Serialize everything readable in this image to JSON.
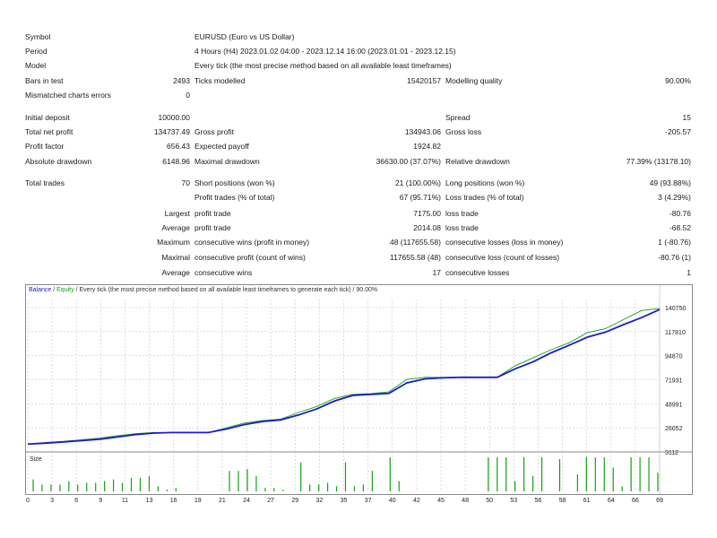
{
  "header_rows": [
    {
      "label": "Symbol",
      "text": "EURUSD (Euro vs US Dollar)"
    },
    {
      "label": "Period",
      "text": "4 Hours (H4) 2023.01.02 04:00 - 2023.12.14 16:00 (2023.01.01 - 2023.12.15)"
    },
    {
      "label": "Model",
      "text": "Every tick (the most precise method based on all available least timeframes)"
    }
  ],
  "bars_row": {
    "label": "Bars in test",
    "value": "2493",
    "l2": "Ticks modelled",
    "v2": "15420157",
    "l3": "Modelling quality",
    "v3": "90.00%"
  },
  "mismatch_row": {
    "label": "Mismatched charts errors",
    "value": "0"
  },
  "stats_rows": [
    {
      "l1": "Initial deposit",
      "v1": "10000.00",
      "l2": "",
      "v2": "",
      "l3": "Spread",
      "v3": "15"
    },
    {
      "l1": "Total net profit",
      "v1": "134737.49",
      "l2": "Gross profit",
      "v2": "134943.06",
      "l3": "Gross loss",
      "v3": "-205.57"
    },
    {
      "l1": "Profit factor",
      "v1": "656.43",
      "l2": "Expected payoff",
      "v2": "1924.82",
      "l3": "",
      "v3": ""
    },
    {
      "l1": "Absolute drawdown",
      "v1": "6148.96",
      "l2": "Maximal drawdown",
      "v2": "36630.00 (37.07%)",
      "l3": "Relative drawdown",
      "v3": "77.39% (13178.10)"
    }
  ],
  "trades_rows": [
    {
      "l1": "Total trades",
      "v1": "70",
      "l2": "Short positions (won %)",
      "v2": "21 (100.00%)",
      "l3": "Long positions (won %)",
      "v3": "49 (93.88%)"
    },
    {
      "l1": "",
      "v1": "",
      "l2": "Profit trades (% of total)",
      "v2": "67 (95.71%)",
      "l3": "Loss trades (% of total)",
      "v3": "3 (4.29%)"
    },
    {
      "l1": "",
      "v1": "Largest",
      "l2": "profit trade",
      "v2": "7175.00",
      "l3": "loss trade",
      "v3": "-80.76"
    },
    {
      "l1": "",
      "v1": "Average",
      "l2": "profit trade",
      "v2": "2014.08",
      "l3": "loss trade",
      "v3": "-68.52"
    },
    {
      "l1": "",
      "v1": "Maximum",
      "l2": "consecutive wins (profit in money)",
      "v2": "48 (117655.58)",
      "l3": "consecutive losses (loss in money)",
      "v3": "1 (-80.76)"
    },
    {
      "l1": "",
      "v1": "Maximal",
      "l2": "consecutive profit (count of wins)",
      "v2": "117655.58 (48)",
      "l3": "consecutive loss (count of losses)",
      "v3": "-80.76 (1)"
    },
    {
      "l1": "",
      "v1": "Average",
      "l2": "consecutive wins",
      "v2": "17",
      "l3": "consecutive losses",
      "v3": "1"
    }
  ],
  "legend": {
    "balance": "Balance",
    "sep": " / ",
    "equity": "Equity",
    "rest": " / Every tick (the most precise method based on all available least timeframes to generate each tick) / 90.00%"
  },
  "colors": {
    "balance": "#1c1cc8",
    "equity": "#12a012",
    "size_bars": "#12a012",
    "grid": "#c8c8c8"
  },
  "chart_data": {
    "type": "line",
    "series": [
      {
        "name": "Balance",
        "x": [
          0,
          2,
          4,
          6,
          8,
          10,
          12,
          14,
          16,
          18,
          20,
          22,
          24,
          26,
          28,
          30,
          32,
          34,
          36,
          38,
          40,
          42,
          44,
          46,
          48,
          50,
          52,
          54,
          56,
          58,
          60,
          62,
          64,
          66,
          68,
          70
        ],
        "values": [
          10000,
          11000,
          12200,
          13500,
          14800,
          17200,
          19500,
          21000,
          21500,
          21500,
          21500,
          25000,
          29500,
          32500,
          34000,
          39000,
          45000,
          53000,
          58500,
          59500,
          60500,
          71000,
          75000,
          76000,
          76500,
          76500,
          76500,
          85000,
          92000,
          101000,
          108500,
          116500,
          121500,
          129000,
          136000,
          144000
        ]
      },
      {
        "name": "Equity",
        "x": [
          0,
          2,
          4,
          6,
          8,
          10,
          12,
          14,
          16,
          18,
          20,
          22,
          24,
          26,
          28,
          30,
          32,
          34,
          36,
          38,
          40,
          42,
          44,
          46,
          48,
          50,
          52,
          54,
          56,
          58,
          60,
          62,
          64,
          66,
          68,
          70
        ],
        "values": [
          10000,
          11600,
          12800,
          14300,
          16000,
          18500,
          20500,
          21600,
          21500,
          21500,
          21500,
          26200,
          31000,
          33500,
          34800,
          41500,
          47500,
          55500,
          59500,
          60300,
          62000,
          74500,
          76500,
          76500,
          76500,
          76500,
          76500,
          88000,
          96000,
          104000,
          111000,
          121000,
          125000,
          134000,
          143000,
          145000
        ]
      }
    ],
    "y_ticks": [
      "140750",
      "117810",
      "94870",
      "71931",
      "48991",
      "26052",
      "3112"
    ],
    "ylim": [
      3112,
      154000
    ],
    "x_ticks": [
      "0",
      "3",
      "6",
      "9",
      "11",
      "13",
      "16",
      "19",
      "21",
      "24",
      "27",
      "29",
      "32",
      "35",
      "37",
      "40",
      "42",
      "45",
      "48",
      "50",
      "53",
      "56",
      "58",
      "61",
      "64",
      "66",
      "69"
    ],
    "size_label": "Size",
    "size_values": [
      0.35,
      0.2,
      0.2,
      0.2,
      0.3,
      0.2,
      0.25,
      0.25,
      0.3,
      0.35,
      0.25,
      0.4,
      0.4,
      0.45,
      0.15,
      0.05,
      0.1,
      0,
      0,
      0,
      0,
      0,
      0.6,
      0.6,
      0.65,
      0.45,
      0.1,
      0.1,
      0.05,
      0,
      0.85,
      0.2,
      0.2,
      0.25,
      0.15,
      0.85,
      0.15,
      0.2,
      0.6,
      0,
      1,
      0.3,
      0,
      0,
      0,
      0,
      0,
      0,
      0,
      0,
      0,
      1,
      1,
      1,
      0.3,
      1,
      0.45,
      1,
      0,
      0.95,
      0,
      0.5,
      1,
      1,
      1,
      0.7,
      0.15,
      1,
      1,
      1,
      0.55
    ]
  }
}
